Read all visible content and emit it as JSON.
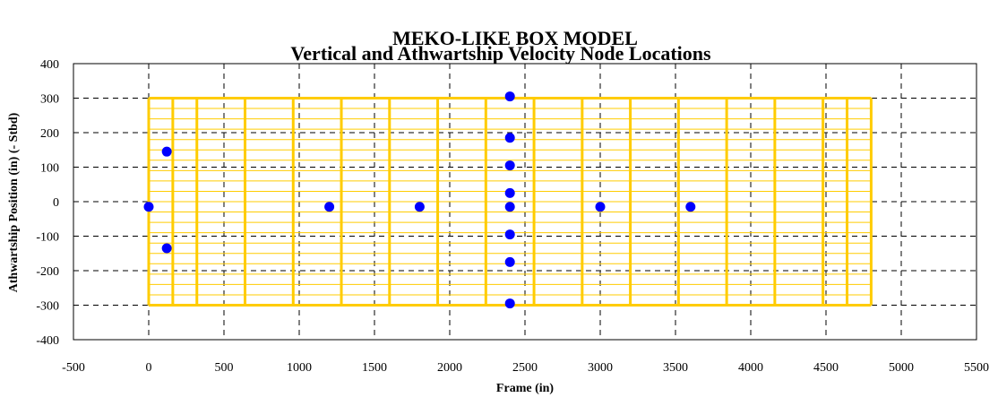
{
  "chart_data": {
    "type": "scatter",
    "title": "MEKO-LIKE BOX MODEL",
    "subtitle": "Vertical and Athwartship Velocity Node Locations",
    "xlabel": "Frame (in)",
    "ylabel": "Athwartship Position (in) (- Stbd)",
    "xlim": [
      -500,
      5500
    ],
    "ylim": [
      -400,
      400
    ],
    "x_ticks": [
      "-500",
      "0",
      "500",
      "1000",
      "1500",
      "2000",
      "2500",
      "3000",
      "3500",
      "4000",
      "4500",
      "5000",
      "5500"
    ],
    "y_ticks": [
      "400",
      "300",
      "200",
      "100",
      "0",
      "-100",
      "-200",
      "-300",
      "-400"
    ],
    "grid": true,
    "grid_style": "dashed",
    "colors": {
      "points": "#0000ff",
      "box": "#ffcc00",
      "grid": "#000000"
    },
    "box_model": {
      "x_range": [
        0,
        4800
      ],
      "y_range": [
        -300,
        300
      ],
      "bulkheads_x": [
        0,
        160,
        320,
        640,
        960,
        1280,
        1600,
        1920,
        2240,
        2560,
        2880,
        3200,
        3520,
        3840,
        4160,
        4480,
        4640,
        4800
      ],
      "decks_y": [
        -300,
        -270,
        -240,
        -210,
        -180,
        -150,
        -120,
        -90,
        -60,
        -30,
        0,
        30,
        60,
        90,
        120,
        150,
        180,
        210,
        240,
        270,
        300
      ]
    },
    "series": [
      {
        "points": [
          [
            0,
            -15
          ],
          [
            120,
            145
          ],
          [
            120,
            -135
          ],
          [
            1200,
            -15
          ],
          [
            1800,
            -15
          ],
          [
            2400,
            305
          ],
          [
            2400,
            185
          ],
          [
            2400,
            105
          ],
          [
            2400,
            25
          ],
          [
            2400,
            -15
          ],
          [
            2400,
            -95
          ],
          [
            2400,
            -175
          ],
          [
            2400,
            -295
          ],
          [
            3000,
            -15
          ],
          [
            3600,
            -15
          ]
        ]
      }
    ]
  }
}
